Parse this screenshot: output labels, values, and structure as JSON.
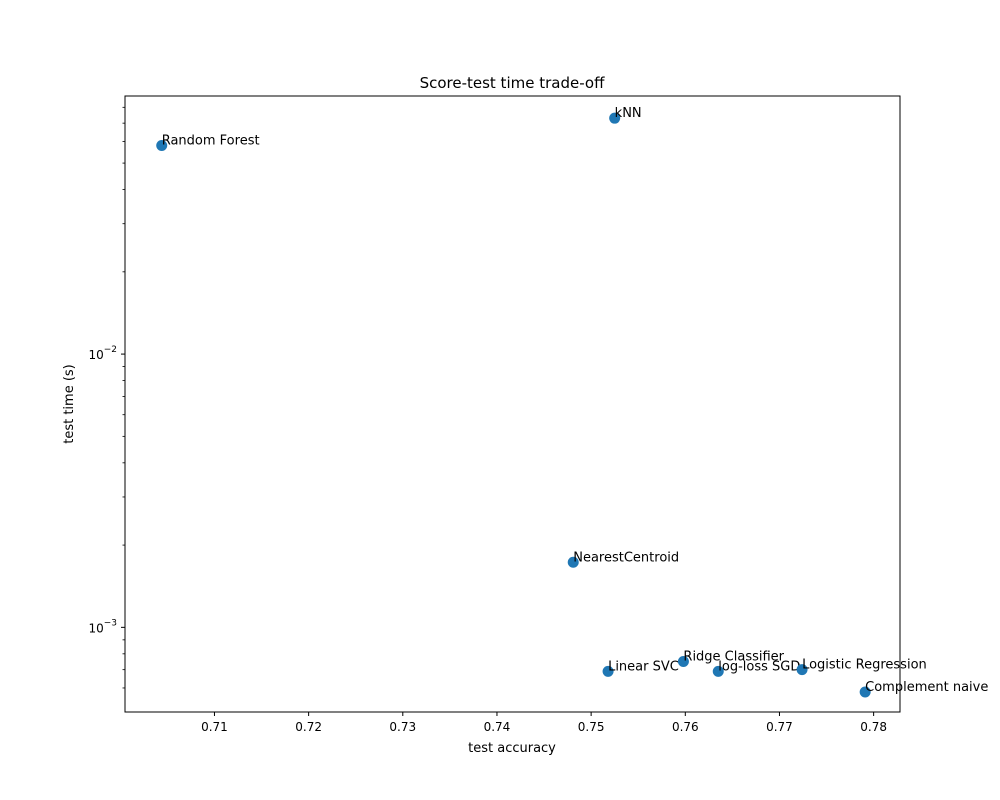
{
  "chart_data": {
    "type": "scatter",
    "title": "Score-test time trade-off",
    "xlabel": "test accuracy",
    "ylabel": "test time (s)",
    "xlim": [
      0.7005,
      0.7828
    ],
    "ylim": [
      0.00049,
      0.088
    ],
    "yscale": "log",
    "grid": false,
    "marker_color": "#1f77b4",
    "x_ticks": [
      {
        "value": 0.71,
        "label": "0.71"
      },
      {
        "value": 0.72,
        "label": "0.72"
      },
      {
        "value": 0.73,
        "label": "0.73"
      },
      {
        "value": 0.74,
        "label": "0.74"
      },
      {
        "value": 0.75,
        "label": "0.75"
      },
      {
        "value": 0.76,
        "label": "0.76"
      },
      {
        "value": 0.77,
        "label": "0.77"
      },
      {
        "value": 0.78,
        "label": "0.78"
      }
    ],
    "y_major_ticks": [
      {
        "value": 0.001,
        "base": "10",
        "exp": "−3"
      },
      {
        "value": 0.01,
        "base": "10",
        "exp": "−2"
      }
    ],
    "y_minor_ticks": [
      0.0006,
      0.0007,
      0.0008,
      0.0009,
      0.002,
      0.003,
      0.004,
      0.005,
      0.006,
      0.007,
      0.008,
      0.009,
      0.02,
      0.03,
      0.04,
      0.05,
      0.06,
      0.07,
      0.08
    ],
    "points": [
      {
        "label": "Random Forest",
        "x": 0.7044,
        "y": 0.058
      },
      {
        "label": "kNN",
        "x": 0.7525,
        "y": 0.073
      },
      {
        "label": "NearestCentroid",
        "x": 0.7481,
        "y": 0.00173
      },
      {
        "label": "Linear SVC",
        "x": 0.7518,
        "y": 0.00069
      },
      {
        "label": "Ridge Classifier",
        "x": 0.7598,
        "y": 0.00075
      },
      {
        "label": "log-loss SGD",
        "x": 0.7635,
        "y": 0.00069
      },
      {
        "label": "Logistic Regression",
        "x": 0.7724,
        "y": 0.0007
      },
      {
        "label": "Complement naive",
        "x": 0.7791,
        "y": 0.00058
      }
    ]
  }
}
